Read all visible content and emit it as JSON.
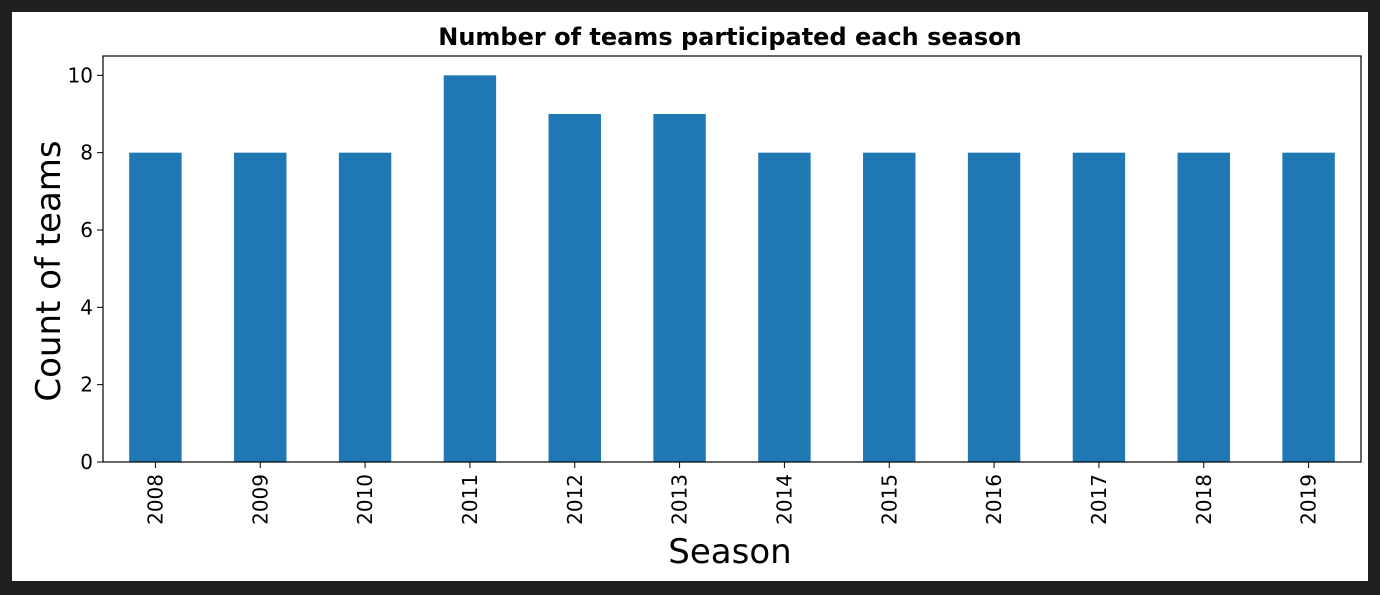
{
  "chart_data": {
    "type": "bar",
    "title": "Number of teams participated each season",
    "xlabel": "Season",
    "ylabel": "Count of teams",
    "categories": [
      "2008",
      "2009",
      "2010",
      "2011",
      "2012",
      "2013",
      "2014",
      "2015",
      "2016",
      "2017",
      "2018",
      "2019"
    ],
    "values": [
      8,
      8,
      8,
      10,
      9,
      9,
      8,
      8,
      8,
      8,
      8,
      8
    ],
    "ylim": [
      0,
      10.5
    ],
    "yticks": [
      0,
      2,
      4,
      6,
      8,
      10
    ],
    "grid": false,
    "legend": "none",
    "bar_color": "#1f77b4"
  }
}
